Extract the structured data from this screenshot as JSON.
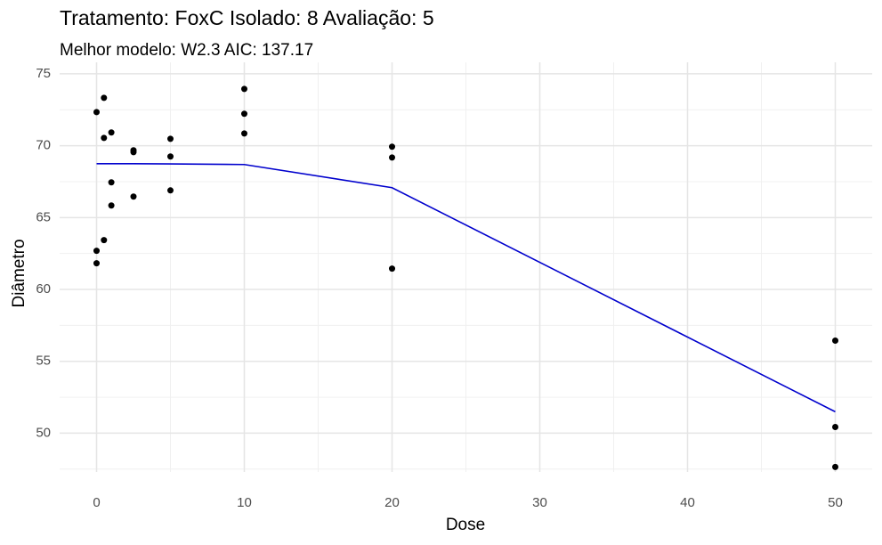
{
  "chart_data": {
    "type": "scatter",
    "title": "Tratamento: FoxC Isolado: 8 Avaliação: 5",
    "subtitle": "Melhor modelo: W2.3 AIC: 137.17",
    "x_label": "Dose",
    "y_label": "Diâmetro",
    "xlim": [
      -2.5,
      52.5
    ],
    "ylim": [
      47.3,
      75.8
    ],
    "xticks": [
      0,
      10,
      20,
      30,
      40,
      50
    ],
    "yticks": [
      50,
      55,
      60,
      65,
      70,
      75
    ],
    "xminor": [
      5,
      15,
      25,
      35,
      45
    ],
    "yminor": [
      47.5,
      52.5,
      57.5,
      62.5,
      67.5,
      72.5
    ],
    "grid": true,
    "series": [
      {
        "type": "scatter",
        "color": "#000000",
        "x": [
          0,
          0,
          0,
          0.5,
          0.5,
          0.5,
          1,
          1,
          1,
          2.5,
          2.5,
          2.5,
          5,
          5,
          5,
          10,
          10,
          10,
          20,
          20,
          20,
          50,
          50,
          50
        ],
        "values": [
          72.34,
          62.69,
          61.82,
          73.33,
          70.54,
          63.43,
          70.92,
          67.45,
          65.84,
          69.68,
          69.55,
          66.46,
          70.48,
          69.25,
          66.89,
          73.95,
          72.22,
          70.85,
          69.93,
          69.18,
          61.45,
          56.44,
          50.43,
          47.65
        ]
      },
      {
        "type": "line",
        "color": "#0000cd",
        "x": [
          0,
          0.5,
          1,
          2.5,
          5,
          10,
          20,
          50
        ],
        "values": [
          68.75,
          68.75,
          68.75,
          68.75,
          68.73,
          68.69,
          67.08,
          51.49
        ]
      }
    ]
  }
}
